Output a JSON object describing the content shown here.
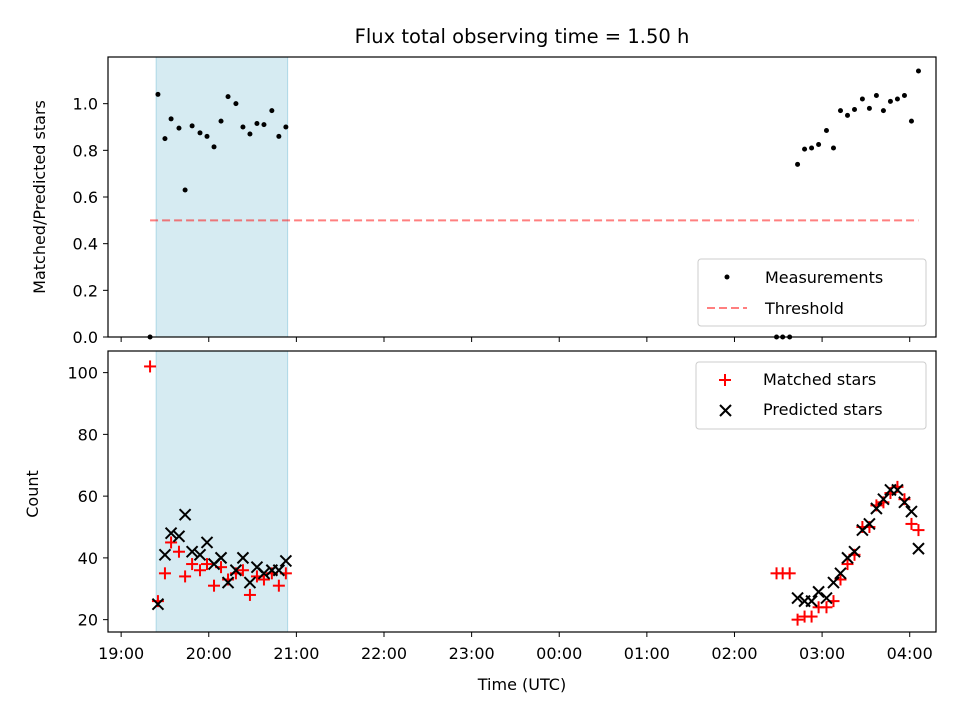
{
  "title": "Flux total observing time = 1.50 h",
  "xlabel": "Time (UTC)",
  "x_ticks": [
    "19:00",
    "20:00",
    "21:00",
    "22:00",
    "23:00",
    "00:00",
    "01:00",
    "02:00",
    "03:00",
    "04:00"
  ],
  "colors": {
    "shade": "#add8e6",
    "threshold": "#ff0000",
    "matched": "#ff0000",
    "predicted": "#000000",
    "measurement": "#000000"
  },
  "chart_data": [
    {
      "type": "scatter",
      "ylabel": "Matched/Predicted stars",
      "ylim": [
        0,
        1.2
      ],
      "y_ticks": [
        "0.0",
        "0.2",
        "0.4",
        "0.6",
        "0.8",
        "1.0"
      ],
      "x_unit": "hours since 19:00 UTC",
      "xlim": [
        -0.15,
        9.3
      ],
      "shaded_interval": [
        0.4,
        1.9
      ],
      "threshold": {
        "value": 0.5,
        "x_range": [
          0.33,
          9.1
        ]
      },
      "legend": {
        "position": "lower-right",
        "entries": [
          "Measurements",
          "Threshold"
        ]
      },
      "series": [
        {
          "name": "Measurements",
          "marker": "dot",
          "points": [
            [
              0.33,
              0.0
            ],
            [
              0.42,
              1.04
            ],
            [
              0.5,
              0.85
            ],
            [
              0.57,
              0.935
            ],
            [
              0.66,
              0.895
            ],
            [
              0.73,
              0.63
            ],
            [
              0.81,
              0.905
            ],
            [
              0.9,
              0.875
            ],
            [
              0.98,
              0.86
            ],
            [
              1.06,
              0.815
            ],
            [
              1.14,
              0.925
            ],
            [
              1.22,
              1.03
            ],
            [
              1.31,
              1.0
            ],
            [
              1.39,
              0.9
            ],
            [
              1.47,
              0.87
            ],
            [
              1.55,
              0.915
            ],
            [
              1.63,
              0.91
            ],
            [
              1.72,
              0.97
            ],
            [
              1.8,
              0.86
            ],
            [
              1.88,
              0.9
            ],
            [
              7.48,
              0.0
            ],
            [
              7.55,
              0.0
            ],
            [
              7.63,
              0.0
            ],
            [
              7.72,
              0.74
            ],
            [
              7.8,
              0.805
            ],
            [
              7.88,
              0.81
            ],
            [
              7.96,
              0.825
            ],
            [
              8.05,
              0.885
            ],
            [
              8.13,
              0.81
            ],
            [
              8.21,
              0.97
            ],
            [
              8.29,
              0.95
            ],
            [
              8.37,
              0.975
            ],
            [
              8.46,
              1.02
            ],
            [
              8.54,
              0.98
            ],
            [
              8.62,
              1.035
            ],
            [
              8.7,
              0.97
            ],
            [
              8.78,
              1.01
            ],
            [
              8.86,
              1.02
            ],
            [
              8.94,
              1.035
            ],
            [
              9.02,
              0.925
            ],
            [
              9.1,
              1.14
            ]
          ]
        }
      ]
    },
    {
      "type": "scatter",
      "ylabel": "Count",
      "ylim": [
        16,
        107
      ],
      "y_ticks": [
        "20",
        "40",
        "60",
        "80",
        "100"
      ],
      "x_unit": "hours since 19:00 UTC",
      "xlim": [
        -0.15,
        9.3
      ],
      "shaded_interval": [
        0.4,
        1.9
      ],
      "legend": {
        "position": "upper-right",
        "entries": [
          "Matched stars",
          "Predicted stars"
        ]
      },
      "series": [
        {
          "name": "Matched stars",
          "marker": "plus",
          "points": [
            [
              0.33,
              102
            ],
            [
              0.42,
              26
            ],
            [
              0.5,
              35
            ],
            [
              0.57,
              45
            ],
            [
              0.66,
              42
            ],
            [
              0.73,
              34
            ],
            [
              0.81,
              38
            ],
            [
              0.9,
              36
            ],
            [
              0.98,
              38
            ],
            [
              1.06,
              31
            ],
            [
              1.14,
              37
            ],
            [
              1.22,
              33
            ],
            [
              1.31,
              35
            ],
            [
              1.39,
              36
            ],
            [
              1.47,
              28
            ],
            [
              1.55,
              34
            ],
            [
              1.63,
              33
            ],
            [
              1.72,
              35
            ],
            [
              1.8,
              31
            ],
            [
              1.88,
              35
            ],
            [
              7.48,
              35
            ],
            [
              7.55,
              35
            ],
            [
              7.63,
              35
            ],
            [
              7.72,
              20
            ],
            [
              7.8,
              21
            ],
            [
              7.88,
              21
            ],
            [
              7.96,
              24
            ],
            [
              8.05,
              24
            ],
            [
              8.13,
              26
            ],
            [
              8.21,
              33
            ],
            [
              8.29,
              38
            ],
            [
              8.37,
              41
            ],
            [
              8.46,
              50
            ],
            [
              8.54,
              50
            ],
            [
              8.62,
              57
            ],
            [
              8.7,
              58
            ],
            [
              8.78,
              61
            ],
            [
              8.86,
              63
            ],
            [
              8.94,
              59
            ],
            [
              9.02,
              51
            ],
            [
              9.1,
              49
            ]
          ]
        },
        {
          "name": "Predicted stars",
          "marker": "x",
          "points": [
            [
              0.42,
              25
            ],
            [
              0.5,
              41
            ],
            [
              0.57,
              48
            ],
            [
              0.66,
              47
            ],
            [
              0.73,
              54
            ],
            [
              0.81,
              42
            ],
            [
              0.9,
              41
            ],
            [
              0.98,
              45
            ],
            [
              1.06,
              38
            ],
            [
              1.14,
              40
            ],
            [
              1.22,
              32
            ],
            [
              1.31,
              36
            ],
            [
              1.39,
              40
            ],
            [
              1.47,
              32
            ],
            [
              1.55,
              37
            ],
            [
              1.63,
              35
            ],
            [
              1.72,
              36
            ],
            [
              1.8,
              36
            ],
            [
              1.88,
              39
            ],
            [
              7.72,
              27
            ],
            [
              7.8,
              26
            ],
            [
              7.88,
              26
            ],
            [
              7.96,
              29
            ],
            [
              8.05,
              27
            ],
            [
              8.13,
              32
            ],
            [
              8.21,
              35
            ],
            [
              8.29,
              40
            ],
            [
              8.37,
              42
            ],
            [
              8.46,
              49
            ],
            [
              8.54,
              51
            ],
            [
              8.62,
              56
            ],
            [
              8.7,
              59
            ],
            [
              8.78,
              62
            ],
            [
              8.86,
              62
            ],
            [
              8.94,
              58
            ],
            [
              9.02,
              55
            ],
            [
              9.1,
              43
            ]
          ]
        }
      ]
    }
  ]
}
